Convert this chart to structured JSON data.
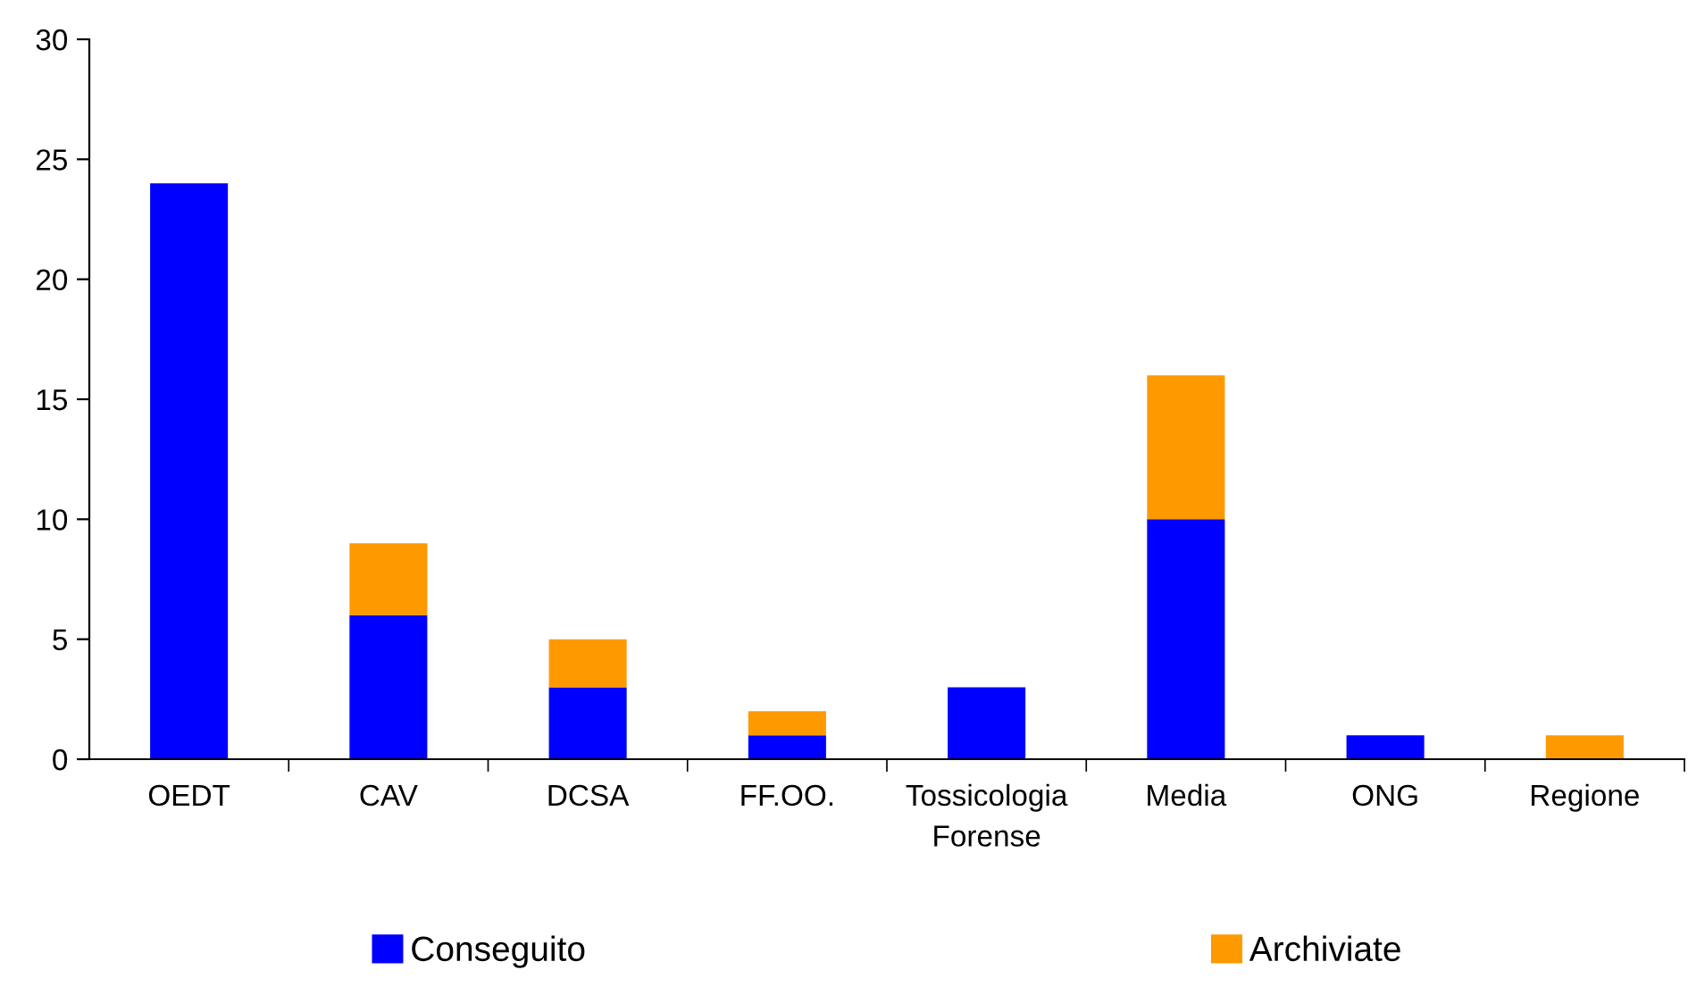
{
  "chart_data": {
    "type": "bar",
    "stacked": true,
    "categories": [
      "OEDT",
      "CAV",
      "DCSA",
      "FF.OO.",
      "Tossicologia\nForense",
      "Media",
      "ONG",
      "Regione"
    ],
    "series": [
      {
        "name": "Conseguito",
        "color": "#0000ff",
        "values": [
          24,
          6,
          3,
          1,
          3,
          10,
          1,
          0
        ]
      },
      {
        "name": "Archiviate",
        "color": "#ff9900",
        "values": [
          0,
          3,
          2,
          1,
          0,
          6,
          0,
          1
        ]
      }
    ],
    "ylim": [
      0,
      30
    ],
    "yticks": [
      0,
      5,
      10,
      15,
      20,
      25,
      30
    ],
    "grid": false,
    "legend": "bottom"
  }
}
